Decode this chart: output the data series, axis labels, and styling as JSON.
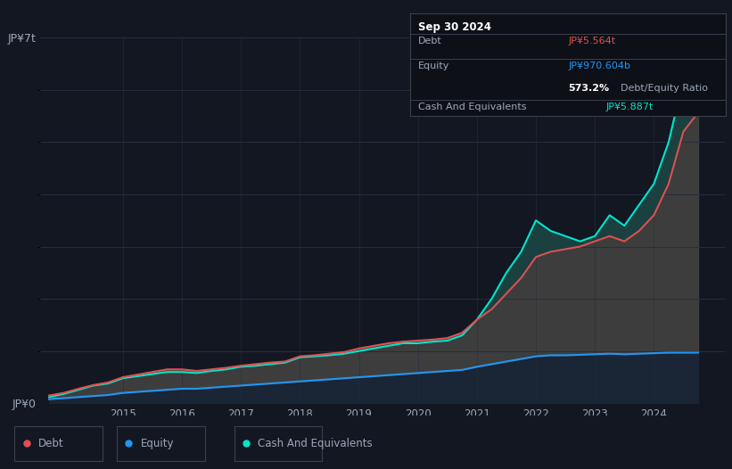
{
  "bg_color": "#131722",
  "chart_bg": "#131722",
  "debt_color": "#e05050",
  "equity_color": "#2196f3",
  "cash_color": "#00e5cc",
  "fill_equity": "#1a2535",
  "fill_debt": "#3d3d3d",
  "fill_cash_above_debt": "#1a4040",
  "grid_color": "#252d3d",
  "text_color": "#9da8b8",
  "box_bg": "#0d1017",
  "box_border": "#3a404f",
  "years": [
    2013.75,
    2014.0,
    2014.25,
    2014.5,
    2014.75,
    2015.0,
    2015.25,
    2015.5,
    2015.75,
    2016.0,
    2016.25,
    2016.5,
    2016.75,
    2017.0,
    2017.25,
    2017.5,
    2017.75,
    2018.0,
    2018.25,
    2018.5,
    2018.75,
    2019.0,
    2019.25,
    2019.5,
    2019.75,
    2020.0,
    2020.25,
    2020.5,
    2020.75,
    2021.0,
    2021.25,
    2021.5,
    2021.75,
    2022.0,
    2022.25,
    2022.5,
    2022.75,
    2023.0,
    2023.25,
    2023.5,
    2023.75,
    2024.0,
    2024.25,
    2024.5,
    2024.75
  ],
  "debt": [
    0.15,
    0.2,
    0.28,
    0.35,
    0.4,
    0.5,
    0.55,
    0.6,
    0.65,
    0.65,
    0.62,
    0.65,
    0.68,
    0.72,
    0.75,
    0.78,
    0.8,
    0.9,
    0.92,
    0.95,
    0.98,
    1.05,
    1.1,
    1.15,
    1.18,
    1.2,
    1.22,
    1.25,
    1.35,
    1.6,
    1.8,
    2.1,
    2.4,
    2.8,
    2.9,
    2.95,
    3.0,
    3.1,
    3.2,
    3.1,
    3.3,
    3.6,
    4.2,
    5.2,
    5.564
  ],
  "equity": [
    0.08,
    0.1,
    0.12,
    0.14,
    0.16,
    0.2,
    0.22,
    0.24,
    0.26,
    0.28,
    0.28,
    0.3,
    0.32,
    0.34,
    0.36,
    0.38,
    0.4,
    0.42,
    0.44,
    0.46,
    0.48,
    0.5,
    0.52,
    0.54,
    0.56,
    0.58,
    0.6,
    0.62,
    0.64,
    0.7,
    0.75,
    0.8,
    0.85,
    0.9,
    0.92,
    0.92,
    0.93,
    0.94,
    0.95,
    0.94,
    0.95,
    0.96,
    0.97,
    0.97,
    0.9706
  ],
  "cash": [
    0.12,
    0.18,
    0.26,
    0.34,
    0.38,
    0.48,
    0.52,
    0.56,
    0.6,
    0.6,
    0.58,
    0.62,
    0.65,
    0.7,
    0.72,
    0.75,
    0.78,
    0.88,
    0.9,
    0.92,
    0.95,
    1.0,
    1.05,
    1.1,
    1.15,
    1.15,
    1.18,
    1.2,
    1.3,
    1.6,
    2.0,
    2.5,
    2.9,
    3.5,
    3.3,
    3.2,
    3.1,
    3.2,
    3.6,
    3.4,
    3.8,
    4.2,
    5.0,
    6.2,
    5.887
  ],
  "xticks": [
    2015,
    2016,
    2017,
    2018,
    2019,
    2020,
    2021,
    2022,
    2023,
    2024
  ],
  "xlim": [
    2013.6,
    2025.2
  ],
  "ylim": [
    0,
    7.0
  ],
  "yticks_minor": [
    1,
    2,
    3,
    4,
    5,
    6
  ],
  "y_label_top": "JP¥7t",
  "y_label_bot": "JP¥0",
  "legend_labels": [
    "Debt",
    "Equity",
    "Cash And Equivalents"
  ],
  "legend_colors": [
    "#e05050",
    "#2196f3",
    "#00e5cc"
  ],
  "info_date": "Sep 30 2024",
  "info_rows": [
    {
      "label": "Debt",
      "value": "JP¥5.564t",
      "value_color": "#e05050"
    },
    {
      "label": "Equity",
      "value": "JP¥970.604b",
      "value_color": "#2196f3"
    },
    {
      "label": "",
      "value": "573.2% Debt/Equity Ratio",
      "value_color": null,
      "bold_prefix": "573.2%"
    },
    {
      "label": "Cash And Equivalents",
      "value": "JP¥5.887t",
      "value_color": "#00e5cc"
    }
  ]
}
